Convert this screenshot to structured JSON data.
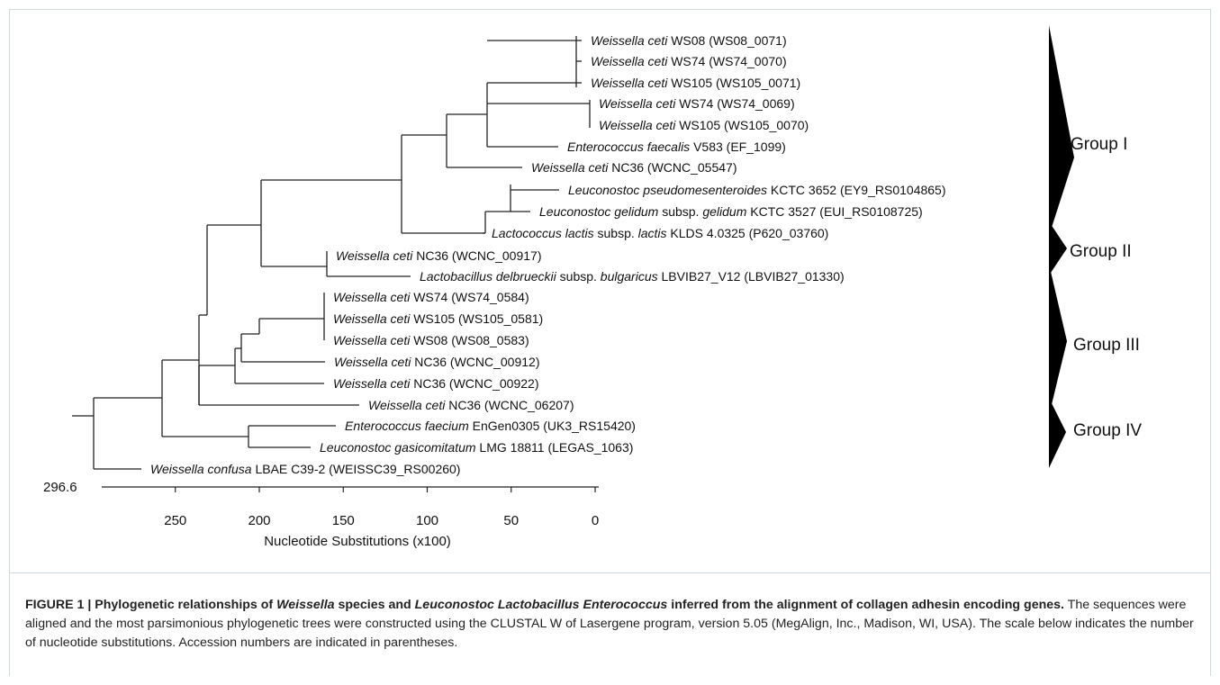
{
  "tree": {
    "leaves": [
      {
        "italic": "Weissella ceti",
        "rest": " WS08 (WS08_0071)"
      },
      {
        "italic": "Weissella ceti",
        "rest": " WS74 (WS74_0070)"
      },
      {
        "italic": "Weissella ceti",
        "rest": "  WS105 (WS105_0071)"
      },
      {
        "italic": "Weissella ceti",
        "rest": "  WS74 (WS74_0069)"
      },
      {
        "italic": "Weissella ceti",
        "rest": "  WS105 (WS105_0070)"
      },
      {
        "italic": "Enterococcus faecalis",
        "rest": " V583 (EF_1099)"
      },
      {
        "italic": "Weissella ceti",
        "rest": "  NC36 (WCNC_05547)"
      },
      {
        "italic": "Leuconostoc pseudomesenteroides",
        "rest": " KCTC 3652 (EY9_RS0104865)"
      },
      {
        "italic": "Leuconostoc gelidum",
        "rest": " subsp. ",
        "italic2": "gelidum",
        "rest2": " KCTC 3527 (EUI_RS0108725)"
      },
      {
        "italic": "Lactococcus lactis",
        "rest": " subsp. ",
        "italic2": "lactis",
        "rest2": " KLDS 4.0325 (P620_03760)"
      },
      {
        "italic": "Weissella ceti",
        "rest": "  NC36 (WCNC_00917)"
      },
      {
        "italic": "Lactobacillus delbrueckii",
        "rest": " subsp. ",
        "italic2": "bulgaricus",
        "rest2": " LBVIB27_V12 (LBVIB27_01330)"
      },
      {
        "italic": "Weissella ceti",
        "rest": " WS74 (WS74_0584)"
      },
      {
        "italic": "Weissella ceti",
        "rest": " WS105 (WS105_0581)"
      },
      {
        "italic": "Weissella ceti",
        "rest": " WS08 (WS08_0583)"
      },
      {
        "italic": "Weissella ceti",
        "rest": " NC36 (WCNC_00912)"
      },
      {
        "italic": "Weissella ceti",
        "rest": " NC36 (WCNC_00922)"
      },
      {
        "italic": "Weissella ceti",
        "rest": " NC36 (WCNC_06207)"
      },
      {
        "italic": "Enterococcus faecium",
        "rest": " EnGen0305 (UK3_RS15420)"
      },
      {
        "italic": "Leuconostoc gasicomitatum",
        "rest": " LMG 18811 (LEGAS_1063)"
      },
      {
        "italic": "Weissella confusa",
        "rest": " LBAE C39-2 (WEISSC39_RS00260)"
      }
    ],
    "groups": [
      "Group I",
      "Group II",
      "Group III",
      "Group IV"
    ]
  },
  "scale": {
    "max_label": "296.6",
    "ticks": [
      "250",
      "200",
      "150",
      "100",
      "50",
      "0"
    ],
    "tick_values": [
      250,
      200,
      150,
      100,
      50,
      0
    ],
    "axis_label": "Nucleotide Substitutions (x100)"
  },
  "caption": {
    "figure_label": "FIGURE 1 | Phylogenetic relationships of ",
    "title_i1": "Weissella",
    "title_m1": " species and ",
    "title_i2": "Leuconostoc Lactobacillus Enterococcus",
    "title_m2": " inferred from the alignment of collagen adhesin encoding genes.",
    "body": " The sequences were aligned and the most parsimonious phylogenetic trees were constructed using the CLUSTAL W of Lasergene program, version 5.05 (MegAlign, Inc., Madison, WI, USA). The scale below indicates the number of nucleotide substitutions. Accession numbers are indicated in parentheses."
  }
}
